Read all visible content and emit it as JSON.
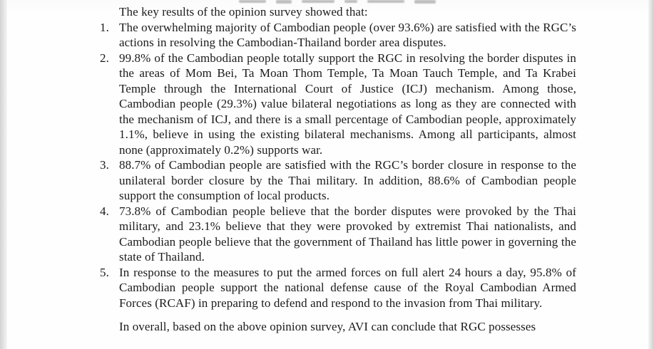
{
  "document": {
    "intro": "The key results of the opinion survey showed that:",
    "items": [
      {
        "number": "1.",
        "text": "The overwhelming majority of Cambodian people (over 93.6%) are satisfied with the RGC’s actions in resolving the Cambodian-Thailand border area disputes."
      },
      {
        "number": "2.",
        "text": "99.8% of the Cambodian people totally support the RGC in resolving the border disputes in the areas of Mom Bei, Ta Moan Thom Temple, Ta Moan Tauch Temple, and Ta Krabei Temple through the International Court of Justice (ICJ) mechanism. Among those, Cambodian people (29.3%) value bilateral negotiations as long as they are connected with the mechanism of ICJ, and there is a small percentage of Cambodian people, approximately 1.1%, believe in using the existing bilateral mechanisms. Among all participants, almost none (approximately 0.2%) supports war."
      },
      {
        "number": "3.",
        "text": "88.7% of Cambodian people are satisfied with the RGC’s border closure in response to the unilateral border closure by the Thai military. In addition, 88.6% of Cambodian people support the consumption of local products."
      },
      {
        "number": "4.",
        "text": "73.8% of Cambodian people believe that the border disputes were provoked by the Thai military, and 23.1% believe that they were provoked by extremist Thai nationalists, and Cambodian people believe that the government of Thailand has little power in governing the state of Thailand."
      },
      {
        "number": "5.",
        "text": "In response to the measures to put the armed forces on full alert 24 hours a day, 95.8% of Cambodian people support the national defense cause of the Royal Cambodian Armed Forces (RCAF) in preparing to defend and respond to the invasion from Thai military."
      }
    ],
    "closing": "In overall, based on the above opinion survey, AVI can conclude that RGC possesses"
  },
  "colors": {
    "text": "#1b1b1b",
    "page_background": "#fdfdfd",
    "edge_strip": "#d9d9d9"
  }
}
